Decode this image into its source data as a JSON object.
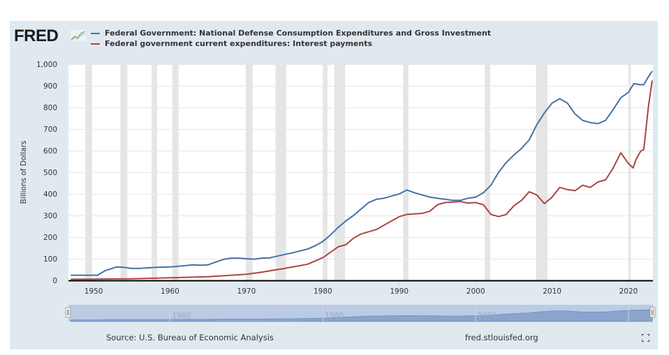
{
  "header": {
    "logo_text": "FRED",
    "logo_icon": "chart-trend-icon"
  },
  "legend": [
    {
      "label": "Federal Government: National Defense Consumption Expenditures and Gross Investment",
      "color": "#4572a7"
    },
    {
      "label": "Federal government current expenditures: Interest payments",
      "color": "#aa4643"
    }
  ],
  "footer": {
    "source": "Source: U.S. Bureau of Economic Analysis",
    "site": "fred.stlouisfed.org",
    "fullscreen_icon": "fullscreen-icon"
  },
  "navigator": {
    "labels": [
      "1960",
      "1980",
      "2000",
      "2020"
    ],
    "left_handle": "range-start-handle",
    "right_handle": "range-end-handle"
  },
  "chart_data": {
    "type": "line",
    "title": "",
    "xlabel": "",
    "ylabel": "Billions of Dollars",
    "xlim": [
      1946.7,
      2023.2
    ],
    "ylim": [
      0,
      1000
    ],
    "grid": true,
    "legend_position": "top",
    "x_ticks": [
      "1950",
      "1960",
      "1970",
      "1980",
      "1990",
      "2000",
      "2010",
      "2020"
    ],
    "y_ticks": [
      "0",
      "100",
      "200",
      "300",
      "400",
      "500",
      "600",
      "700",
      "800",
      "900",
      "1,000"
    ],
    "recessions": [
      [
        1948.9,
        1949.8
      ],
      [
        1953.5,
        1954.4
      ],
      [
        1957.6,
        1958.3
      ],
      [
        1960.3,
        1961.1
      ],
      [
        1969.9,
        1970.8
      ],
      [
        1973.8,
        1975.2
      ],
      [
        1980.0,
        1980.6
      ],
      [
        1981.5,
        1982.9
      ],
      [
        1990.5,
        1991.2
      ],
      [
        2001.2,
        2001.9
      ],
      [
        2007.9,
        2009.4
      ],
      [
        2020.0,
        2020.3
      ]
    ],
    "series": [
      {
        "name": "Federal Government: National Defense Consumption Expenditures and Gross Investment",
        "color": "#4572a7",
        "x": [
          1947,
          1949,
          1950.5,
          1951.5,
          1953,
          1954,
          1955,
          1956,
          1958,
          1960,
          1962,
          1963,
          1964,
          1965,
          1966,
          1967,
          1968,
          1969,
          1970,
          1971,
          1972,
          1973,
          1974,
          1975,
          1976,
          1977,
          1978,
          1979,
          1980,
          1981,
          1982,
          1983,
          1984,
          1985,
          1986,
          1987,
          1988,
          1989,
          1990,
          1991,
          1992,
          1993,
          1994,
          1995,
          1996,
          1997,
          1998,
          1999,
          2000,
          2001,
          2002,
          2003,
          2004,
          2005,
          2006,
          2007,
          2008,
          2009,
          2010,
          2011,
          2012,
          2013,
          2014,
          2015,
          2016,
          2017,
          2018,
          2019,
          2020,
          2020.7,
          2021.5,
          2022,
          2022.5,
          2023.1
        ],
        "values": [
          24,
          24,
          24,
          45,
          62,
          60,
          55,
          55,
          60,
          62,
          68,
          72,
          70,
          72,
          85,
          97,
          103,
          103,
          100,
          98,
          103,
          104,
          112,
          120,
          127,
          136,
          145,
          160,
          180,
          210,
          245,
          275,
          300,
          330,
          360,
          375,
          380,
          390,
          400,
          418,
          405,
          395,
          385,
          380,
          375,
          370,
          370,
          380,
          385,
          405,
          440,
          500,
          545,
          580,
          610,
          650,
          720,
          775,
          820,
          840,
          820,
          770,
          740,
          730,
          725,
          740,
          790,
          845,
          870,
          910,
          905,
          905,
          935,
          968
        ]
      },
      {
        "name": "Federal government current expenditures: Interest payments",
        "color": "#aa4643",
        "x": [
          1947,
          1955,
          1960,
          1965,
          1970,
          1972,
          1975,
          1978,
          1980,
          1981,
          1982,
          1983,
          1984,
          1985,
          1986,
          1987,
          1988,
          1989,
          1990,
          1991,
          1992,
          1993,
          1994,
          1995,
          1996,
          1997,
          1998,
          1999,
          2000,
          2001,
          2002,
          2003,
          2004,
          2005,
          2006,
          2007,
          2008,
          2009,
          2010,
          2011,
          2012,
          2013,
          2014,
          2015,
          2016,
          2017,
          2018,
          2019,
          2020,
          2020.6,
          2021,
          2021.6,
          2022,
          2022.6,
          2023.1
        ],
        "values": [
          5,
          7,
          12,
          17,
          28,
          38,
          55,
          75,
          105,
          130,
          155,
          165,
          195,
          215,
          225,
          235,
          255,
          275,
          295,
          305,
          307,
          310,
          320,
          350,
          360,
          362,
          365,
          357,
          360,
          350,
          305,
          295,
          305,
          345,
          370,
          410,
          395,
          355,
          385,
          430,
          420,
          415,
          440,
          430,
          455,
          465,
          520,
          590,
          540,
          520,
          560,
          598,
          605,
          800,
          925
        ]
      }
    ]
  }
}
